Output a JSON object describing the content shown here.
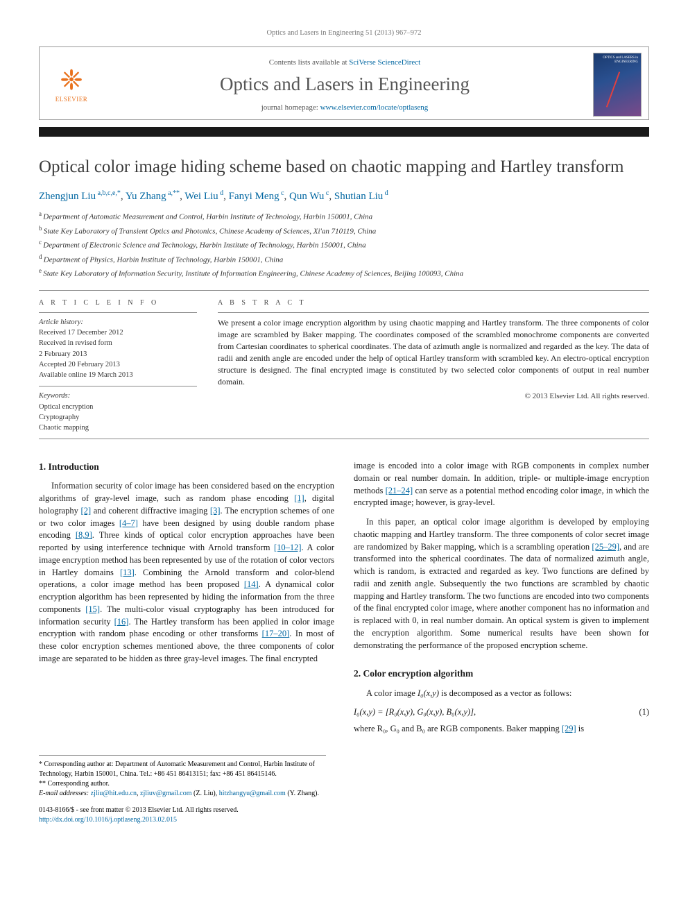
{
  "running_header": "Optics and Lasers in Engineering 51 (2013) 967–972",
  "masthead": {
    "contents_prefix": "Contents lists available at ",
    "contents_link": "SciVerse ScienceDirect",
    "journal_name": "Optics and Lasers in Engineering",
    "homepage_prefix": "journal homepage: ",
    "homepage_url": "www.elsevier.com/locate/optlaseng",
    "publisher": "ELSEVIER",
    "cover_label": "OPTICS and LASERS in ENGINEERING"
  },
  "title": "Optical color image hiding scheme based on chaotic mapping and Hartley transform",
  "authors": [
    {
      "name": "Zhengjun Liu",
      "marks": "a,b,c,e,*"
    },
    {
      "name": "Yu Zhang",
      "marks": "a,**"
    },
    {
      "name": "Wei Liu",
      "marks": "d"
    },
    {
      "name": "Fanyi Meng",
      "marks": "c"
    },
    {
      "name": "Qun Wu",
      "marks": "c"
    },
    {
      "name": "Shutian Liu",
      "marks": "d"
    }
  ],
  "affiliations": [
    {
      "label": "a",
      "text": "Department of Automatic Measurement and Control, Harbin Institute of Technology, Harbin 150001, China"
    },
    {
      "label": "b",
      "text": "State Key Laboratory of Transient Optics and Photonics, Chinese Academy of Sciences, Xi'an 710119, China"
    },
    {
      "label": "c",
      "text": "Department of Electronic Science and Technology, Harbin Institute of Technology, Harbin 150001, China"
    },
    {
      "label": "d",
      "text": "Department of Physics, Harbin Institute of Technology, Harbin 150001, China"
    },
    {
      "label": "e",
      "text": "State Key Laboratory of Information Security, Institute of Information Engineering, Chinese Academy of Sciences, Beijing 100093, China"
    }
  ],
  "article_info": {
    "heading": "A R T I C L E   I N F O",
    "history_label": "Article history:",
    "history": [
      "Received 17 December 2012",
      "Received in revised form",
      "2 February 2013",
      "Accepted 20 February 2013",
      "Available online 19 March 2013"
    ],
    "keywords_label": "Keywords:",
    "keywords": [
      "Optical encryption",
      "Cryptography",
      "Chaotic mapping"
    ]
  },
  "abstract": {
    "heading": "A B S T R A C T",
    "text": "We present a color image encryption algorithm by using chaotic mapping and Hartley transform. The three components of color image are scrambled by Baker mapping. The coordinates composed of the scrambled monochrome components are converted from Cartesian coordinates to spherical coordinates. The data of azimuth angle is normalized and regarded as the key. The data of radii and zenith angle are encoded under the help of optical Hartley transform with scrambled key. An electro-optical encryption structure is designed. The final encrypted image is constituted by two selected color components of output in real number domain.",
    "copyright": "© 2013 Elsevier Ltd. All rights reserved."
  },
  "sections": {
    "intro_heading": "1.  Introduction",
    "intro_p1": "Information security of color image has been considered based on the encryption algorithms of gray-level image, such as random phase encoding [1], digital holography [2] and coherent diffractive imaging [3]. The encryption schemes of one or two color images [4–7] have been designed by using double random phase encoding [8,9]. Three kinds of optical color encryption approaches have been reported by using interference technique with Arnold transform [10–12]. A color image encryption method has been represented by use of the rotation of color vectors in Hartley domains [13]. Combining the Arnold transform and color-blend operations, a color image method has been proposed [14]. A dynamical color encryption algorithm has been represented by hiding the information from the three components [15]. The multi-color visual cryptography has been introduced for information security [16]. The Hartley transform has been applied in color image encryption with random phase encoding or other transforms [17–20]. In most of these color encryption schemes mentioned above, the three components of color image are separated to be hidden as three gray-level images. The final encrypted",
    "intro_p2": "image is encoded into a color image with RGB components in complex number domain or real number domain. In addition, triple- or multiple-image encryption methods [21–24] can serve as a potential method encoding color image, in which the encrypted image; however, is gray-level.",
    "intro_p3": "In this paper, an optical color image algorithm is developed by employing chaotic mapping and Hartley transform. The three components of color secret image are randomized by Baker mapping, which is a scrambling operation [25–29], and are transformed into the spherical coordinates. The data of normalized azimuth angle, which is random, is extracted and regarded as key. Two functions are defined by radii and zenith angle. Subsequently the two functions are scrambled by chaotic mapping and Hartley transform. The two functions are encoded into two components of the final encrypted color image, where another component has no information and is replaced with 0, in real number domain. An optical system is given to implement the encryption algorithm. Some numerical results have been shown for demonstrating the performance of the proposed encryption scheme.",
    "algo_heading": "2.  Color encryption algorithm",
    "algo_p1_lead": "A color image ",
    "algo_p1_var": "I₀(x,y)",
    "algo_p1_tail": " is decomposed as a vector as follows:",
    "equation": "I₀(x,y) = [R₀(x,y), G₀(x,y), B₀(x,y)],",
    "eqnum": "(1)",
    "algo_p2": "where R₀, G₀ and B₀ are RGB components. Baker mapping [29] is"
  },
  "footnotes": {
    "corr1": "* Corresponding author at: Department of Automatic Measurement and Control, Harbin Institute of Technology, Harbin 150001, China. Tel.: +86 451 86413151; fax: +86 451 86415146.",
    "corr2": "** Corresponding author.",
    "email_label": "E-mail addresses: ",
    "email1": "zjliu@hit.edu.cn",
    "email1_sep": ", ",
    "email2": "zjliuv@gmail.com",
    "email_owner1": " (Z. Liu),",
    "email3": "hitzhangyu@gmail.com",
    "email_owner2": " (Y. Zhang)."
  },
  "doi": {
    "line1": "0143-8166/$ - see front matter © 2013 Elsevier Ltd. All rights reserved.",
    "line2": "http://dx.doi.org/10.1016/j.optlaseng.2013.02.015"
  },
  "colors": {
    "link": "#0066a1",
    "publisher": "#e9711c",
    "text": "#1a1a1a",
    "rule": "#888888"
  }
}
